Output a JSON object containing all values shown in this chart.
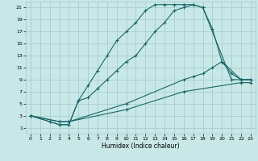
{
  "title": "",
  "xlabel": "Humidex (Indice chaleur)",
  "bg_color": "#c8e8e8",
  "grid_color": "#a0c8c8",
  "line_color": "#1a6666",
  "xlim": [
    -0.5,
    23.5
  ],
  "ylim": [
    0,
    22
  ],
  "xticks": [
    0,
    1,
    2,
    3,
    4,
    5,
    6,
    7,
    8,
    9,
    10,
    11,
    12,
    13,
    14,
    15,
    16,
    17,
    18,
    19,
    20,
    21,
    22,
    23
  ],
  "yticks": [
    1,
    3,
    5,
    7,
    9,
    11,
    13,
    15,
    17,
    19,
    21
  ],
  "series": [
    {
      "x": [
        0,
        2,
        3,
        4,
        5,
        6,
        7,
        8,
        9,
        10,
        11,
        12,
        13,
        14,
        15,
        16,
        17,
        18,
        21,
        22,
        23
      ],
      "y": [
        3,
        2,
        1.5,
        1.5,
        5.5,
        8,
        10.5,
        13,
        15.5,
        17,
        18.5,
        20.5,
        21.5,
        21.5,
        21.5,
        21.5,
        21.5,
        21,
        9,
        9,
        9
      ]
    },
    {
      "x": [
        0,
        2,
        3,
        4,
        5,
        6,
        7,
        8,
        9,
        10,
        11,
        12,
        13,
        14,
        15,
        16,
        17,
        18,
        19,
        20,
        22,
        23
      ],
      "y": [
        3,
        2,
        1.5,
        1.5,
        5.5,
        6,
        7.5,
        9,
        10.5,
        12,
        13,
        15,
        17,
        18.5,
        20.5,
        21,
        21.5,
        21,
        17.5,
        12,
        9,
        9
      ]
    },
    {
      "x": [
        0,
        3,
        4,
        10,
        16,
        17,
        18,
        19,
        20,
        21,
        22,
        23
      ],
      "y": [
        3,
        2,
        2,
        5,
        9,
        9.5,
        10,
        11,
        12,
        10,
        9,
        9
      ]
    },
    {
      "x": [
        0,
        3,
        4,
        10,
        16,
        22,
        23
      ],
      "y": [
        3,
        2,
        2,
        4,
        7,
        8.5,
        8.5
      ]
    }
  ]
}
